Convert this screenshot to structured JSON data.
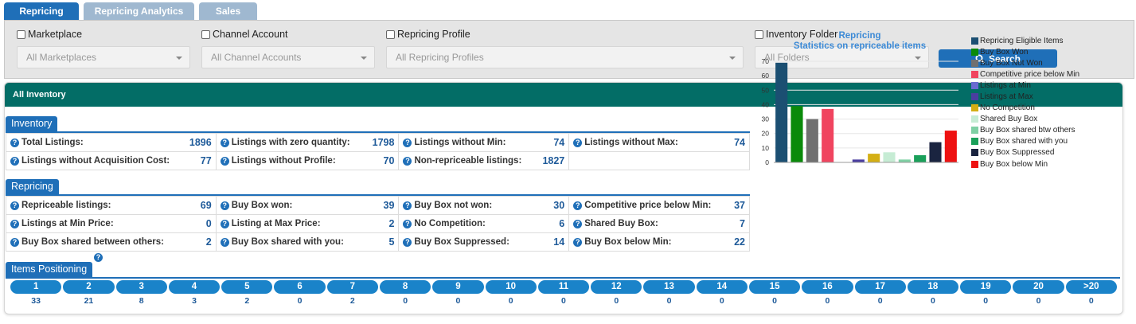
{
  "tabs": [
    {
      "label": "Repricing",
      "active": true
    },
    {
      "label": "Repricing Analytics",
      "active": false
    },
    {
      "label": "Sales",
      "active": false
    }
  ],
  "filters": {
    "marketplace": {
      "label": "Marketplace",
      "placeholder": "All Marketplaces"
    },
    "channel": {
      "label": "Channel Account",
      "placeholder": "All Channel Accounts"
    },
    "profile": {
      "label": "Repricing Profile",
      "placeholder": "All Repricing Profiles"
    },
    "folder": {
      "label": "Inventory Folder",
      "placeholder": "All Folders"
    },
    "search_label": "Search"
  },
  "panel": {
    "title": "All Inventory"
  },
  "inventory": {
    "title": "Inventory",
    "rows": [
      [
        {
          "label": "Total Listings:",
          "value": "1896"
        },
        {
          "label": "Listings with zero quantity:",
          "value": "1798"
        },
        {
          "label": "Listings without Min:",
          "value": "74"
        },
        {
          "label": "Listings without Max:",
          "value": "74"
        }
      ],
      [
        {
          "label": "Listings without Acquisition Cost:",
          "value": "77"
        },
        {
          "label": "Listings without Profile:",
          "value": "70"
        },
        {
          "label": "Non-repriceable listings:",
          "value": "1827"
        },
        {
          "label": "",
          "value": ""
        }
      ]
    ]
  },
  "repricing": {
    "title": "Repricing",
    "rows": [
      [
        {
          "label": "Repriceable listings:",
          "value": "69"
        },
        {
          "label": "Buy Box won:",
          "value": "39"
        },
        {
          "label": "Buy Box not won:",
          "value": "30"
        },
        {
          "label": "Competitive price below Min:",
          "value": "37"
        }
      ],
      [
        {
          "label": "Listings at Min Price:",
          "value": "0"
        },
        {
          "label": "Listing at Max Price:",
          "value": "2"
        },
        {
          "label": "No Competition:",
          "value": "6"
        },
        {
          "label": "Shared Buy Box:",
          "value": "7"
        }
      ],
      [
        {
          "label": "Buy Box shared between others:",
          "value": "2"
        },
        {
          "label": "Buy Box shared with you:",
          "value": "5"
        },
        {
          "label": "Buy Box Suppressed:",
          "value": "14"
        },
        {
          "label": "Buy Box below Min:",
          "value": "22"
        }
      ]
    ]
  },
  "positioning": {
    "title": "Items Positioning",
    "labels": [
      "1",
      "2",
      "3",
      "4",
      "5",
      "6",
      "7",
      "8",
      "9",
      "10",
      "11",
      "12",
      "13",
      "14",
      "15",
      "16",
      "17",
      "18",
      "19",
      "20",
      ">20"
    ],
    "values": [
      "33",
      "21",
      "8",
      "3",
      "2",
      "0",
      "2",
      "0",
      "0",
      "0",
      "0",
      "0",
      "0",
      "0",
      "0",
      "0",
      "0",
      "0",
      "0",
      "0",
      "0"
    ]
  },
  "chart_data": {
    "type": "bar",
    "title": "Repricing",
    "subtitle": "Statistics on repriceable items",
    "ylim": [
      0,
      70
    ],
    "yticks": [
      "0",
      "10",
      "20",
      "30",
      "40",
      "50",
      "60",
      "70"
    ],
    "series": [
      {
        "name": "Repricing Eligible Items",
        "value": 69,
        "color": "#1b4f72"
      },
      {
        "name": "Buy Box Won",
        "value": 39,
        "color": "#0a8a0a"
      },
      {
        "name": "Buy Box Not Won",
        "value": 30,
        "color": "#707070"
      },
      {
        "name": "Competitive price below Min",
        "value": 37,
        "color": "#f0445f"
      },
      {
        "name": "Listings at Min",
        "value": 0,
        "color": "#6a6ad0"
      },
      {
        "name": "Listings at Max",
        "value": 2,
        "color": "#4a3ea0"
      },
      {
        "name": "No Competition",
        "value": 6,
        "color": "#d4af14"
      },
      {
        "name": "Shared Buy Box",
        "value": 7,
        "color": "#c6ecd4"
      },
      {
        "name": "Buy Box shared btw others",
        "value": 2,
        "color": "#7fd0a4"
      },
      {
        "name": "Buy Box shared with you",
        "value": 5,
        "color": "#1aa05a"
      },
      {
        "name": "Buy Box Suppressed",
        "value": 14,
        "color": "#1a2440"
      },
      {
        "name": "Buy Box below Min",
        "value": 22,
        "color": "#ee1111"
      }
    ]
  }
}
